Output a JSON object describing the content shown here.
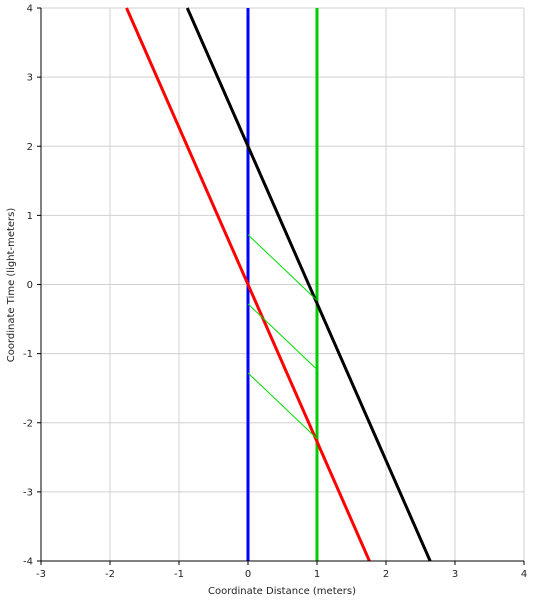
{
  "chart_data": {
    "type": "line",
    "title": "",
    "xlabel": "Coordinate Distance (meters)",
    "ylabel": "Coordinate Time (light-meters)",
    "xlim": [
      -3,
      4
    ],
    "ylim": [
      -4,
      4
    ],
    "x_ticks": [
      -3,
      -2,
      -1,
      0,
      1,
      2,
      3,
      4
    ],
    "y_ticks": [
      -4,
      -3,
      -2,
      -1,
      0,
      1,
      2,
      3,
      4
    ],
    "grid": true,
    "colors": {
      "grid": "#d0d0d0",
      "axis": "#000000"
    },
    "series": [
      {
        "color": "#0000ff",
        "width": 3,
        "x": [
          0,
          0
        ],
        "y": [
          -4,
          4
        ]
      },
      {
        "color": "#00cc00",
        "width": 3,
        "x": [
          1,
          1
        ],
        "y": [
          -4,
          4
        ]
      },
      {
        "color": "#ff0000",
        "width": 3,
        "x": [
          -1.76,
          1.76
        ],
        "y": [
          4,
          -4
        ]
      },
      {
        "color": "#000000",
        "width": 3,
        "x": [
          -0.88,
          2.64
        ],
        "y": [
          4,
          -4
        ]
      },
      {
        "color": "#00dd00",
        "width": 1,
        "x": [
          0,
          1
        ],
        "y": [
          0.72,
          -0.23
        ]
      },
      {
        "color": "#00dd00",
        "width": 1,
        "x": [
          0,
          1
        ],
        "y": [
          -0.28,
          -1.23
        ]
      },
      {
        "color": "#00dd00",
        "width": 1,
        "x": [
          0,
          1
        ],
        "y": [
          -1.28,
          -2.23
        ]
      }
    ]
  }
}
